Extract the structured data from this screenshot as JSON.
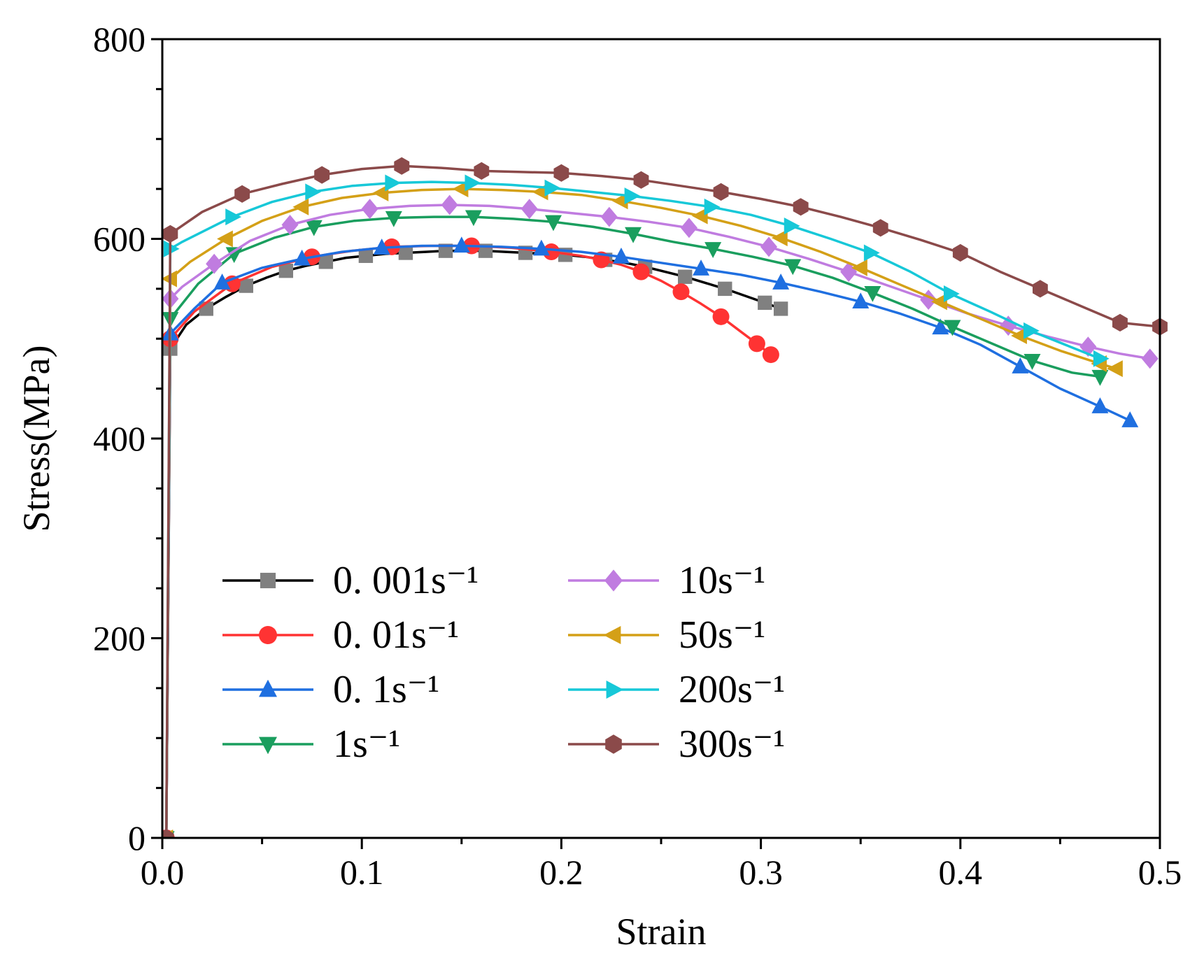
{
  "chart_data": {
    "type": "line",
    "xlabel": "Strain",
    "ylabel": "Stress(MPa)",
    "xlim": [
      0,
      0.5
    ],
    "ylim": [
      0,
      800
    ],
    "x_ticks": [
      0.0,
      0.1,
      0.2,
      0.3,
      0.4,
      0.5
    ],
    "x_tick_labels": [
      "0.0",
      "0.1",
      "0.2",
      "0.3",
      "0.4",
      "0.5"
    ],
    "y_ticks": [
      0,
      200,
      400,
      600,
      800
    ],
    "y_tick_labels": [
      "0",
      "200",
      "400",
      "600",
      "800"
    ],
    "grid": false,
    "legend_placement": "lower-left",
    "legend_columns": 2,
    "series": [
      {
        "name": "0. 001s⁻¹",
        "color": "#000000",
        "marker": "square",
        "marker_color": "#808080",
        "x": [
          0.002,
          0.004,
          0.012,
          0.022,
          0.032,
          0.042,
          0.052,
          0.062,
          0.072,
          0.082,
          0.092,
          0.102,
          0.112,
          0.122,
          0.132,
          0.142,
          0.152,
          0.162,
          0.172,
          0.182,
          0.192,
          0.202,
          0.212,
          0.222,
          0.232,
          0.242,
          0.252,
          0.262,
          0.272,
          0.282,
          0.292,
          0.302,
          0.31
        ],
        "y": [
          0,
          490,
          514,
          530,
          542,
          553,
          561,
          568,
          573,
          577,
          581,
          583,
          585,
          586,
          587,
          588,
          588,
          588,
          587,
          586,
          585,
          584,
          582,
          579,
          576,
          572,
          567,
          562,
          556,
          550,
          543,
          536,
          530
        ]
      },
      {
        "name": "0. 01s⁻¹",
        "color": "#ff3333",
        "marker": "circle",
        "marker_color": "#ff3333",
        "x": [
          0.002,
          0.004,
          0.016,
          0.035,
          0.055,
          0.075,
          0.095,
          0.115,
          0.135,
          0.155,
          0.175,
          0.195,
          0.21,
          0.22,
          0.23,
          0.24,
          0.25,
          0.26,
          0.27,
          0.28,
          0.29,
          0.298,
          0.305
        ],
        "y": [
          0,
          500,
          527,
          555,
          572,
          582,
          588,
          592,
          593,
          593,
          591,
          587,
          583,
          579,
          574,
          567,
          558,
          547,
          535,
          522,
          507,
          495,
          484
        ]
      },
      {
        "name": "0. 1s⁻¹",
        "color": "#1f6fe0",
        "marker": "triangle-up",
        "marker_color": "#1f6fe0",
        "x": [
          0.002,
          0.004,
          0.016,
          0.03,
          0.05,
          0.07,
          0.09,
          0.11,
          0.13,
          0.15,
          0.17,
          0.19,
          0.21,
          0.23,
          0.25,
          0.27,
          0.29,
          0.31,
          0.33,
          0.35,
          0.37,
          0.39,
          0.41,
          0.43,
          0.45,
          0.47,
          0.485
        ],
        "y": [
          0,
          505,
          530,
          556,
          571,
          580,
          587,
          591,
          593,
          593,
          592,
          590,
          587,
          582,
          576,
          570,
          564,
          556,
          547,
          537,
          525,
          511,
          494,
          472,
          450,
          432,
          418
        ]
      },
      {
        "name": "1s⁻¹",
        "color": "#1a9e5e",
        "marker": "triangle-down",
        "marker_color": "#1a9e5e",
        "x": [
          0.002,
          0.004,
          0.018,
          0.036,
          0.056,
          0.076,
          0.096,
          0.116,
          0.136,
          0.156,
          0.176,
          0.196,
          0.216,
          0.236,
          0.256,
          0.276,
          0.296,
          0.316,
          0.336,
          0.356,
          0.376,
          0.396,
          0.416,
          0.436,
          0.456,
          0.47
        ],
        "y": [
          0,
          520,
          555,
          585,
          601,
          612,
          618,
          621,
          622,
          622,
          620,
          617,
          612,
          605,
          597,
          590,
          582,
          573,
          561,
          546,
          530,
          512,
          495,
          478,
          466,
          462
        ]
      },
      {
        "name": "10s⁻¹",
        "color": "#c07ce0",
        "marker": "diamond",
        "marker_color": "#c07ce0",
        "x": [
          0.002,
          0.004,
          0.01,
          0.026,
          0.044,
          0.064,
          0.084,
          0.104,
          0.124,
          0.144,
          0.164,
          0.184,
          0.204,
          0.224,
          0.244,
          0.264,
          0.284,
          0.304,
          0.324,
          0.344,
          0.364,
          0.384,
          0.404,
          0.424,
          0.444,
          0.464,
          0.48,
          0.495
        ],
        "y": [
          0,
          540,
          552,
          575,
          598,
          614,
          624,
          630,
          633,
          634,
          633,
          630,
          626,
          622,
          617,
          611,
          602,
          592,
          580,
          567,
          553,
          539,
          525,
          513,
          502,
          492,
          485,
          480
        ]
      },
      {
        "name": "50s⁻¹",
        "color": "#d4a017",
        "marker": "triangle-left",
        "marker_color": "#d4a017",
        "x": [
          0.002,
          0.004,
          0.014,
          0.032,
          0.05,
          0.07,
          0.09,
          0.11,
          0.13,
          0.15,
          0.17,
          0.19,
          0.21,
          0.23,
          0.25,
          0.27,
          0.29,
          0.31,
          0.33,
          0.35,
          0.37,
          0.39,
          0.41,
          0.43,
          0.45,
          0.47,
          0.478
        ],
        "y": [
          0,
          560,
          577,
          600,
          618,
          632,
          641,
          646,
          649,
          650,
          649,
          647,
          644,
          638,
          631,
          623,
          613,
          601,
          587,
          571,
          554,
          537,
          520,
          503,
          488,
          475,
          470
        ]
      },
      {
        "name": "200s⁻¹",
        "color": "#17c8d8",
        "marker": "triangle-right",
        "marker_color": "#17c8d8",
        "x": [
          0.002,
          0.004,
          0.01,
          0.035,
          0.055,
          0.075,
          0.095,
          0.115,
          0.135,
          0.155,
          0.175,
          0.195,
          0.215,
          0.235,
          0.255,
          0.275,
          0.295,
          0.315,
          0.335,
          0.355,
          0.375,
          0.395,
          0.415,
          0.435,
          0.455,
          0.47
        ],
        "y": [
          0,
          590,
          597,
          622,
          637,
          647,
          653,
          656,
          657,
          656,
          654,
          651,
          647,
          643,
          638,
          632,
          624,
          613,
          600,
          586,
          567,
          545,
          527,
          508,
          492,
          480
        ]
      },
      {
        "name": "300s⁻¹",
        "color": "#8b4a4a",
        "marker": "hexagon",
        "marker_color": "#8b4a4a",
        "x": [
          0.002,
          0.004,
          0.02,
          0.04,
          0.06,
          0.08,
          0.1,
          0.12,
          0.14,
          0.16,
          0.18,
          0.2,
          0.22,
          0.24,
          0.26,
          0.28,
          0.3,
          0.32,
          0.34,
          0.36,
          0.38,
          0.4,
          0.42,
          0.44,
          0.46,
          0.48,
          0.5
        ],
        "y": [
          0,
          605,
          627,
          645,
          655,
          664,
          670,
          673,
          671,
          668,
          667,
          666,
          663,
          659,
          653,
          647,
          640,
          632,
          622,
          611,
          599,
          586,
          567,
          550,
          533,
          516,
          512
        ]
      }
    ]
  }
}
